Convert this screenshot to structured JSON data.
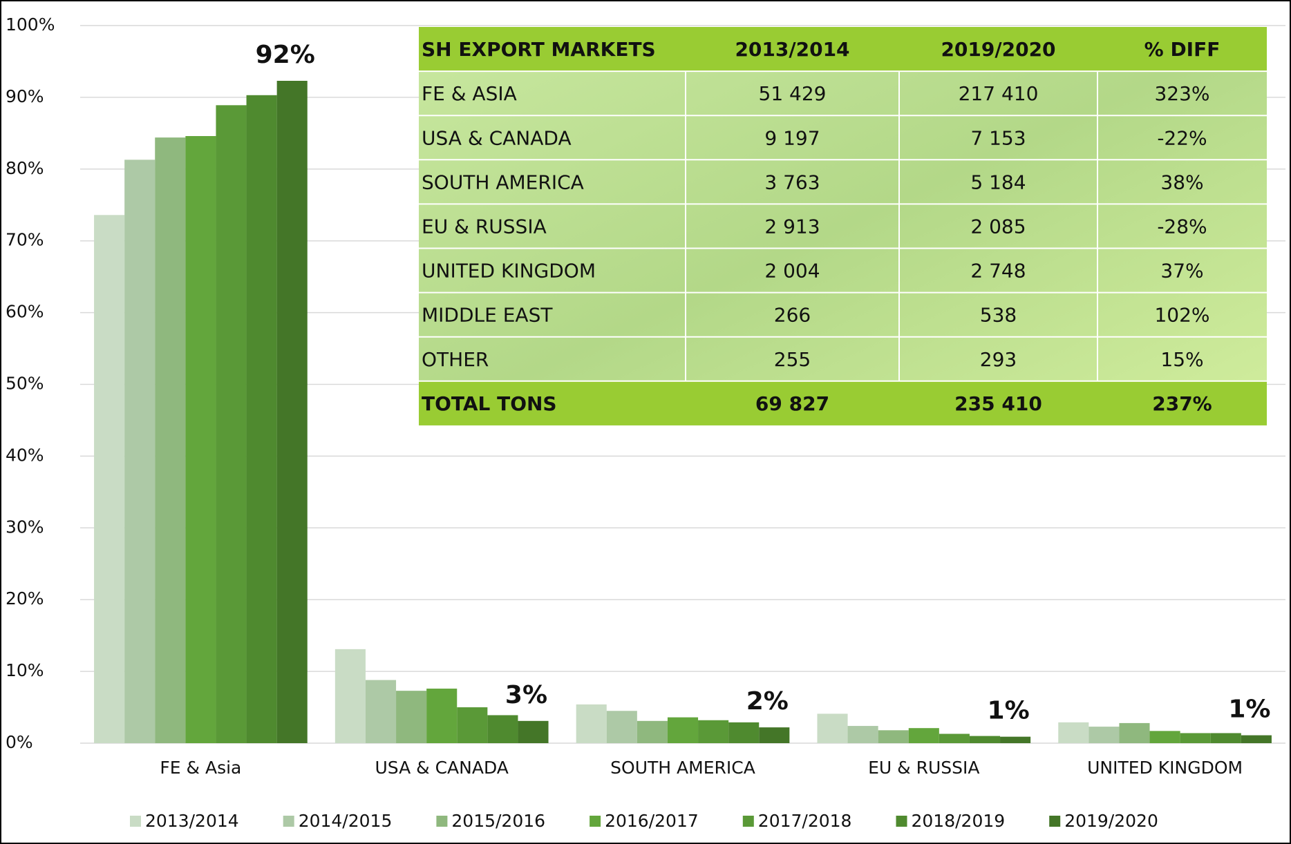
{
  "chart_data": {
    "type": "bar",
    "categories": [
      "FE & Asia",
      "USA & CANADA",
      "SOUTH AMERICA",
      "EU & RUSSIA",
      "UNITED KINGDOM"
    ],
    "series": [
      {
        "name": "2013/2014",
        "color": "#c9dcc5",
        "values": [
          73.6,
          13.1,
          5.4,
          4.1,
          2.9
        ]
      },
      {
        "name": "2014/2015",
        "color": "#adc9a6",
        "values": [
          81.3,
          8.8,
          4.5,
          2.4,
          2.3
        ]
      },
      {
        "name": "2015/2016",
        "color": "#8fb87e",
        "values": [
          84.4,
          7.3,
          3.1,
          1.8,
          2.8
        ]
      },
      {
        "name": "2016/2017",
        "color": "#63a63c",
        "values": [
          84.6,
          7.6,
          3.6,
          2.1,
          1.7
        ]
      },
      {
        "name": "2017/2018",
        "color": "#5a9937",
        "values": [
          88.9,
          5.0,
          3.2,
          1.3,
          1.4
        ]
      },
      {
        "name": "2018/2019",
        "color": "#4f8a2f",
        "values": [
          90.3,
          3.9,
          2.9,
          1.0,
          1.4
        ]
      },
      {
        "name": "2019/2020",
        "color": "#447628",
        "values": [
          92.3,
          3.1,
          2.2,
          0.9,
          1.1
        ],
        "value_labels": [
          "92%",
          "3%",
          "2%",
          "1%",
          "1%"
        ]
      }
    ],
    "ylim": [
      0,
      100
    ],
    "yticks": [
      {
        "value": 0,
        "label": "0%"
      },
      {
        "value": 10,
        "label": "10%"
      },
      {
        "value": 20,
        "label": "20%"
      },
      {
        "value": 30,
        "label": "30%"
      },
      {
        "value": 40,
        "label": "40%"
      },
      {
        "value": 50,
        "label": "50%"
      },
      {
        "value": 60,
        "label": "60%"
      },
      {
        "value": 70,
        "label": "70%"
      },
      {
        "value": 80,
        "label": "80%"
      },
      {
        "value": 90,
        "label": "90%"
      },
      {
        "value": 100,
        "label": "100%"
      }
    ],
    "grid": true,
    "legend": "bottom"
  },
  "table": {
    "header": [
      "SH EXPORT MARKETS",
      "2013/2014",
      "2019/2020",
      "% DIFF"
    ],
    "rows": [
      [
        "FE & ASIA",
        "51 429",
        "217 410",
        "323%"
      ],
      [
        "USA & CANADA",
        "9 197",
        "7 153",
        "-22%"
      ],
      [
        "SOUTH AMERICA",
        "3 763",
        "5 184",
        "38%"
      ],
      [
        "EU & RUSSIA",
        "2 913",
        "2 085",
        "-28%"
      ],
      [
        "UNITED KINGDOM",
        "2 004",
        "2 748",
        "37%"
      ],
      [
        "MIDDLE EAST",
        "266",
        "538",
        "102%"
      ],
      [
        "OTHER",
        "255",
        "293",
        "15%"
      ]
    ],
    "total": [
      "TOTAL TONS",
      "69 827",
      "235 410",
      "237%"
    ]
  }
}
